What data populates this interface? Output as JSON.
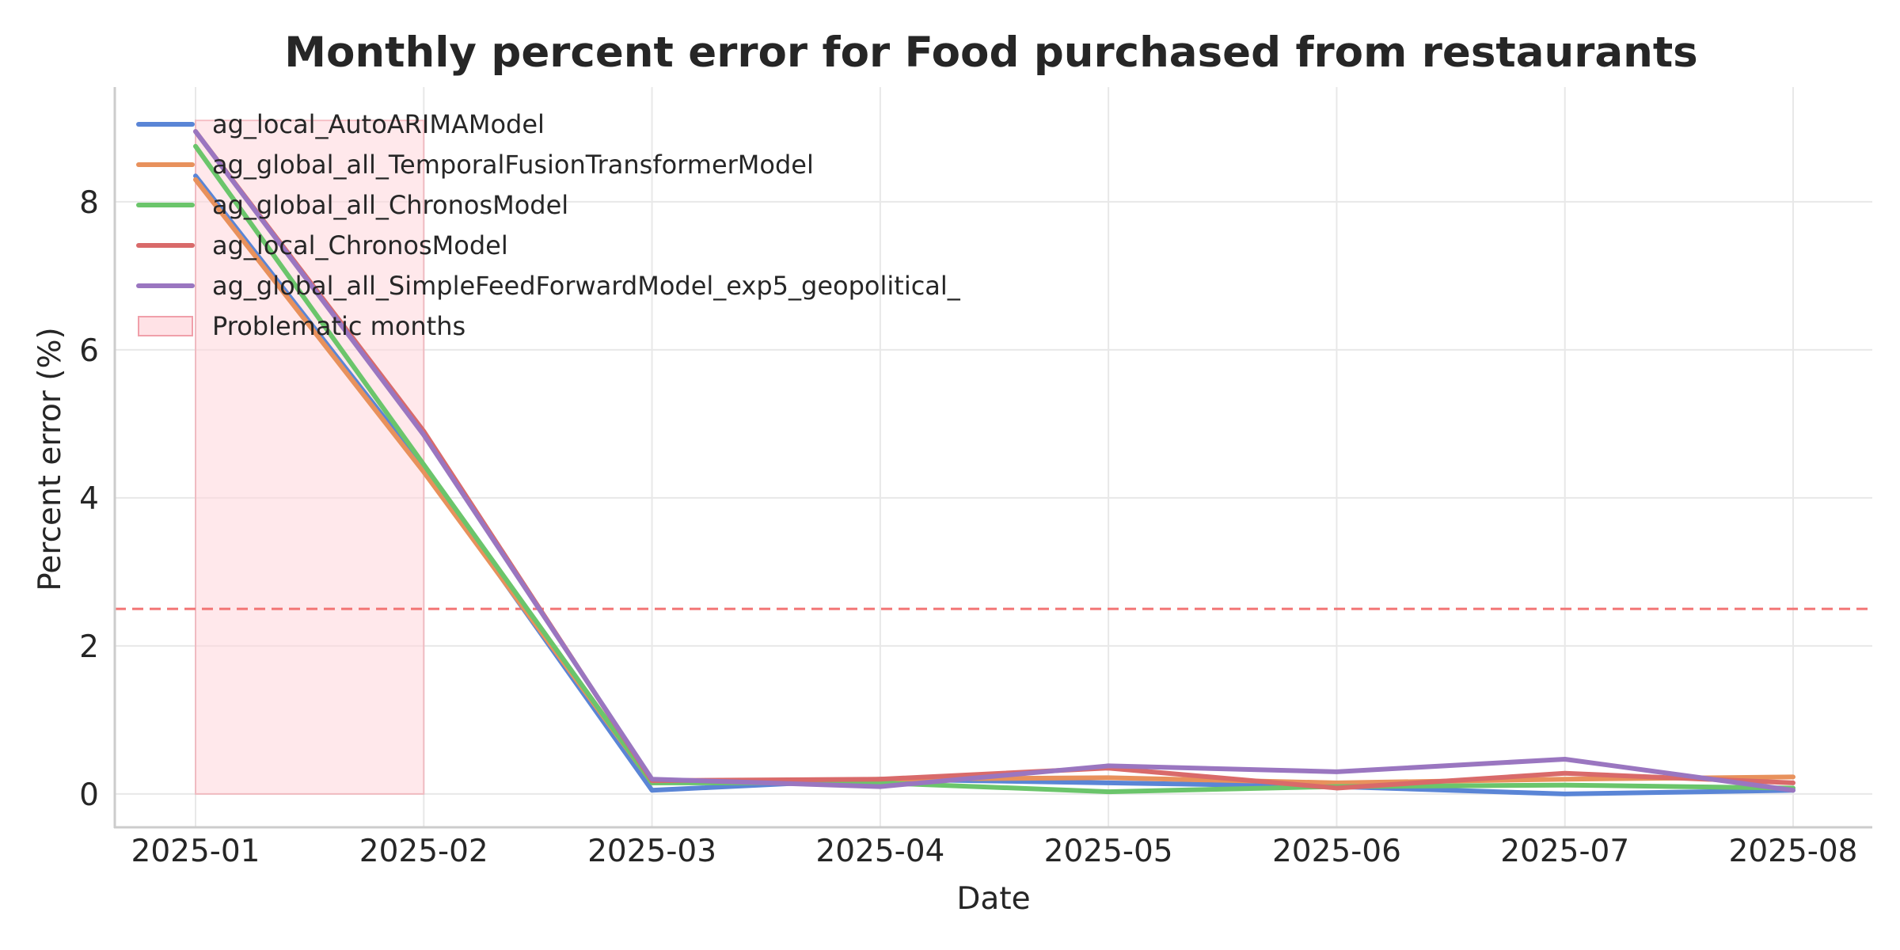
{
  "chart_data": {
    "type": "line",
    "title": "Monthly percent error for Food purchased from restaurants",
    "xlabel": "Date",
    "ylabel": "Percent error (%)",
    "categories": [
      "2025-01",
      "2025-02",
      "2025-03",
      "2025-04",
      "2025-05",
      "2025-06",
      "2025-07",
      "2025-08"
    ],
    "yticks": [
      0,
      2,
      4,
      6,
      8
    ],
    "ylim": [
      -0.45,
      9.55
    ],
    "grid": true,
    "legend_position": "upper-left",
    "threshold": {
      "value": 2.5,
      "color": "#f27474",
      "style": "dashed"
    },
    "shaded_region": {
      "label": "Problematic months",
      "from": "2025-01",
      "to": "2025-02",
      "color": "#ffd6db"
    },
    "series": [
      {
        "name": "ag_local_AutoARIMAModel",
        "color": "#5a85d6",
        "values": [
          8.35,
          4.4,
          0.05,
          0.2,
          0.15,
          0.1,
          0.0,
          0.05
        ]
      },
      {
        "name": "ag_global_all_TemporalFusionTransformerModel",
        "color": "#e8915c",
        "values": [
          8.3,
          4.35,
          0.15,
          0.2,
          0.22,
          0.15,
          0.2,
          0.23
        ]
      },
      {
        "name": "ag_global_all_ChronosModel",
        "color": "#6bc56b",
        "values": [
          8.75,
          4.45,
          0.15,
          0.15,
          0.03,
          0.1,
          0.12,
          0.08
        ]
      },
      {
        "name": "ag_local_ChronosModel",
        "color": "#d96a6a",
        "values": [
          8.95,
          4.9,
          0.18,
          0.2,
          0.35,
          0.08,
          0.28,
          0.15
        ]
      },
      {
        "name": "ag_global_all_SimpleFeedForwardModel_exp5_geopolitical_",
        "color": "#9a76c0",
        "values": [
          8.95,
          4.85,
          0.2,
          0.1,
          0.38,
          0.3,
          0.47,
          0.05
        ]
      }
    ]
  }
}
